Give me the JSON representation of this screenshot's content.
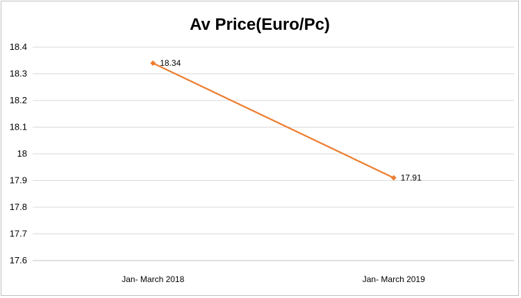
{
  "chart_data": {
    "type": "line",
    "title": "Av Price(Euro/Pc)",
    "categories": [
      "Jan- March 2018",
      "Jan- March 2019"
    ],
    "series": [
      {
        "values": [
          18.34,
          17.91
        ],
        "data_labels": [
          "18.34",
          "17.91"
        ],
        "color": "#ED7D31"
      }
    ],
    "ylim": [
      17.6,
      18.4
    ],
    "yticks": [
      17.6,
      17.7,
      17.8,
      17.9,
      18,
      18.1,
      18.2,
      18.3,
      18.4
    ],
    "ytick_labels": [
      "17.6",
      "17.7",
      "17.8",
      "17.9",
      "18",
      "18.1",
      "18.2",
      "18.3",
      "18.4"
    ],
    "xlabel": "",
    "ylabel": "",
    "grid": true,
    "legend": "none"
  },
  "colors": {
    "grid": "#d9d9d9",
    "axis": "#bfbfbf",
    "series": "#ED7D31"
  }
}
